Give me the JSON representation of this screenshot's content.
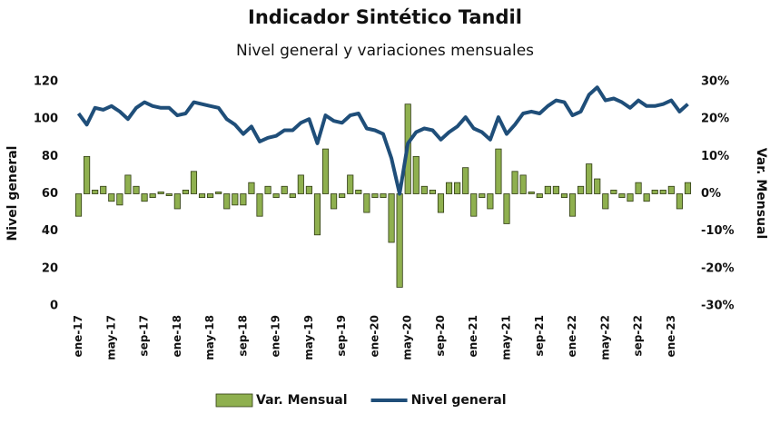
{
  "chart_data": {
    "type": "combo",
    "title": "Indicador Sintético Tandil",
    "subtitle": "Nivel general y variaciones mensuales",
    "y_label": "Nivel general",
    "y2_label": "Var. Mensual",
    "categories": [
      "ene-17",
      null,
      null,
      null,
      "may-17",
      null,
      null,
      null,
      "sep-17",
      null,
      null,
      null,
      "ene-18",
      null,
      null,
      null,
      "may-18",
      null,
      null,
      null,
      "sep-18",
      null,
      null,
      null,
      "ene-19",
      null,
      null,
      null,
      "may-19",
      null,
      null,
      null,
      "sep-19",
      null,
      null,
      null,
      "ene-20",
      null,
      null,
      null,
      "may-20",
      null,
      null,
      null,
      "sep-20",
      null,
      null,
      null,
      "ene-21",
      null,
      null,
      null,
      "may-21",
      null,
      null,
      null,
      "sep-21",
      null,
      null,
      null,
      "ene-22",
      null,
      null,
      null,
      "may-22",
      null,
      null,
      null,
      "sep-22",
      null,
      null,
      null,
      "ene-23",
      null,
      null
    ],
    "series": [
      {
        "name": "Var. Mensual",
        "type": "bar",
        "axis": "y2",
        "color": "#8fb04f",
        "edge": "#2e3a12",
        "values": [
          -6,
          10,
          1,
          2,
          -2,
          -3,
          5,
          2,
          -2,
          -1,
          0.5,
          -0.5,
          -4,
          1,
          6,
          -1,
          -1,
          0.5,
          -4,
          -3,
          -3,
          3,
          -6,
          2,
          -1,
          2,
          -1,
          5,
          2,
          -11,
          12,
          -4,
          -1,
          5,
          1,
          -5,
          -1,
          -1,
          -13,
          -25,
          24,
          10,
          2,
          1,
          -5,
          3,
          3,
          7,
          -6,
          -1,
          -4,
          12,
          -8,
          6,
          5,
          0.5,
          -1,
          2,
          2,
          -1,
          -6,
          2,
          8,
          4,
          -4,
          1,
          -1,
          -2,
          3,
          -2,
          1,
          1,
          2,
          -4,
          3
        ]
      },
      {
        "name": "Nivel general",
        "type": "line",
        "color": "#1f4e79",
        "values": [
          103,
          97,
          106,
          105,
          107,
          104,
          100,
          106,
          109,
          107,
          106,
          106,
          102,
          103,
          109,
          108,
          107,
          106,
          100,
          97,
          92,
          96,
          88,
          90,
          91,
          94,
          94,
          98,
          100,
          87,
          102,
          99,
          98,
          102,
          103,
          95,
          94,
          92,
          79,
          60,
          87,
          93,
          95,
          94,
          89,
          93,
          96,
          101,
          95,
          93,
          89,
          101,
          92,
          97,
          103,
          104,
          103,
          107,
          110,
          109,
          102,
          104,
          113,
          117,
          110,
          111,
          109,
          106,
          110,
          107,
          107,
          108,
          110,
          104,
          108
        ]
      }
    ],
    "ylim": [
      0,
      120
    ],
    "yticks": [
      0,
      20,
      40,
      60,
      80,
      100,
      120
    ],
    "y2lim": [
      -30,
      30
    ],
    "y2ticks": [
      {
        "value": -30,
        "label": "-30%"
      },
      {
        "value": -20,
        "label": "-20%"
      },
      {
        "value": -10,
        "label": "-10%"
      },
      {
        "value": 0,
        "label": "0%"
      },
      {
        "value": 10,
        "label": "10%"
      },
      {
        "value": 20,
        "label": "20%"
      },
      {
        "value": 30,
        "label": "30%"
      }
    ],
    "grid": false,
    "legend": "bottom"
  }
}
